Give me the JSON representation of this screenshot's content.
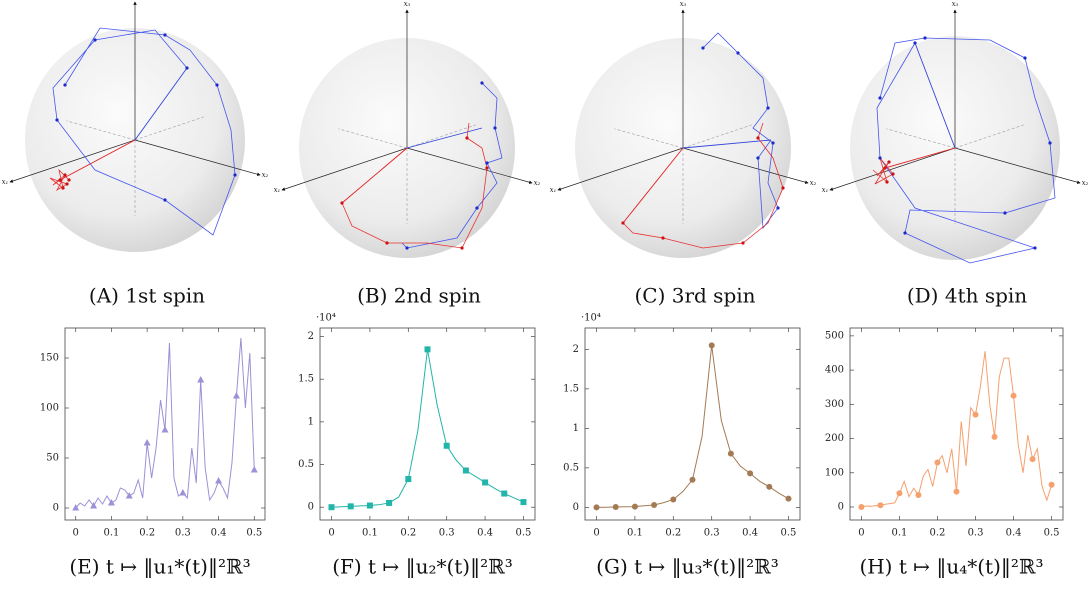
{
  "axis_labels": [
    "x₁",
    "x₂",
    "x₃"
  ],
  "panels": [
    {
      "caption": "(A) 1st spin"
    },
    {
      "caption": "(B) 2nd spin"
    },
    {
      "caption": "(C) 3rd spin"
    },
    {
      "caption": "(D) 4th spin"
    }
  ],
  "chart_data": [
    {
      "type": "line",
      "caption": "(E) t ↦ ‖u₁*(t)‖²ℝ³",
      "color": "#9d90d6",
      "marker": "triangle",
      "x": [
        0,
        0.0125,
        0.025,
        0.0375,
        0.05,
        0.0625,
        0.075,
        0.0875,
        0.1,
        0.1125,
        0.125,
        0.1375,
        0.15,
        0.1625,
        0.175,
        0.1875,
        0.2,
        0.2125,
        0.225,
        0.2375,
        0.25,
        0.2625,
        0.275,
        0.2875,
        0.3,
        0.3125,
        0.325,
        0.3375,
        0.35,
        0.3625,
        0.375,
        0.3875,
        0.4,
        0.4125,
        0.425,
        0.4375,
        0.45,
        0.4625,
        0.475,
        0.4875,
        0.5
      ],
      "values": [
        0,
        5,
        2,
        8,
        2,
        10,
        4,
        12,
        5,
        8,
        20,
        18,
        12,
        15,
        28,
        10,
        65,
        30,
        60,
        108,
        78,
        165,
        30,
        12,
        15,
        10,
        60,
        25,
        128,
        40,
        8,
        15,
        27,
        20,
        10,
        45,
        112,
        170,
        100,
        155,
        38
      ],
      "xlim": [
        -0.03,
        0.53
      ],
      "ylim": [
        -12,
        180
      ],
      "xticks": [
        0,
        0.1,
        0.2,
        0.3,
        0.4,
        0.5
      ],
      "yticks": [
        0,
        50,
        100,
        150
      ]
    },
    {
      "type": "line",
      "caption": "(F) t ↦ ‖u₂*(t)‖²ℝ³",
      "color": "#22b5a9",
      "marker": "square",
      "scale_label": "·10⁴",
      "x": [
        0,
        0.025,
        0.05,
        0.075,
        0.1,
        0.125,
        0.15,
        0.175,
        0.2,
        0.225,
        0.25,
        0.275,
        0.3,
        0.325,
        0.35,
        0.375,
        0.4,
        0.425,
        0.45,
        0.475,
        0.5
      ],
      "values": [
        0,
        0.005,
        0.01,
        0.015,
        0.02,
        0.03,
        0.05,
        0.12,
        0.33,
        0.9,
        1.85,
        1.2,
        0.72,
        0.55,
        0.43,
        0.36,
        0.29,
        0.22,
        0.16,
        0.11,
        0.06
      ],
      "xlim": [
        -0.03,
        0.53
      ],
      "ylim": [
        -0.15,
        2.1
      ],
      "xticks": [
        0,
        0.1,
        0.2,
        0.3,
        0.4,
        0.5
      ],
      "yticks": [
        0,
        0.5,
        1,
        1.5,
        2
      ]
    },
    {
      "type": "line",
      "caption": "(G) t ↦ ‖u₃*(t)‖²ℝ³",
      "color": "#a47a55",
      "marker": "circle",
      "scale_label": "·10⁴",
      "x": [
        0,
        0.025,
        0.05,
        0.075,
        0.1,
        0.125,
        0.15,
        0.175,
        0.2,
        0.225,
        0.25,
        0.275,
        0.3,
        0.325,
        0.35,
        0.375,
        0.4,
        0.425,
        0.45,
        0.475,
        0.5
      ],
      "values": [
        0,
        0.002,
        0.005,
        0.007,
        0.01,
        0.02,
        0.03,
        0.06,
        0.1,
        0.2,
        0.35,
        0.9,
        2.05,
        1.1,
        0.68,
        0.52,
        0.43,
        0.33,
        0.26,
        0.18,
        0.11
      ],
      "xlim": [
        -0.03,
        0.53
      ],
      "ylim": [
        -0.16,
        2.27
      ],
      "xticks": [
        0,
        0.1,
        0.2,
        0.3,
        0.4,
        0.5
      ],
      "yticks": [
        0,
        0.5,
        1,
        1.5,
        2
      ]
    },
    {
      "type": "line",
      "caption": "(H) t ↦ ‖u₄*(t)‖²ℝ³",
      "color": "#f6a06e",
      "marker": "circle",
      "x": [
        0,
        0.0125,
        0.025,
        0.0375,
        0.05,
        0.0625,
        0.075,
        0.0875,
        0.1,
        0.1125,
        0.125,
        0.1375,
        0.15,
        0.1625,
        0.175,
        0.1875,
        0.2,
        0.2125,
        0.225,
        0.2375,
        0.25,
        0.2625,
        0.275,
        0.2875,
        0.3,
        0.3125,
        0.325,
        0.3375,
        0.35,
        0.3625,
        0.375,
        0.3875,
        0.4,
        0.4125,
        0.425,
        0.4375,
        0.45,
        0.4625,
        0.475,
        0.4875,
        0.5
      ],
      "values": [
        0,
        3,
        2,
        4,
        5,
        8,
        10,
        12,
        40,
        75,
        30,
        55,
        35,
        90,
        110,
        60,
        130,
        150,
        100,
        170,
        45,
        250,
        120,
        290,
        270,
        350,
        455,
        300,
        205,
        380,
        435,
        435,
        325,
        180,
        100,
        210,
        140,
        170,
        60,
        20,
        65
      ],
      "xlim": [
        -0.03,
        0.53
      ],
      "ylim": [
        -38,
        523
      ],
      "xticks": [
        0,
        0.1,
        0.2,
        0.3,
        0.4,
        0.5
      ],
      "yticks": [
        0,
        100,
        200,
        300,
        400,
        500
      ]
    }
  ]
}
